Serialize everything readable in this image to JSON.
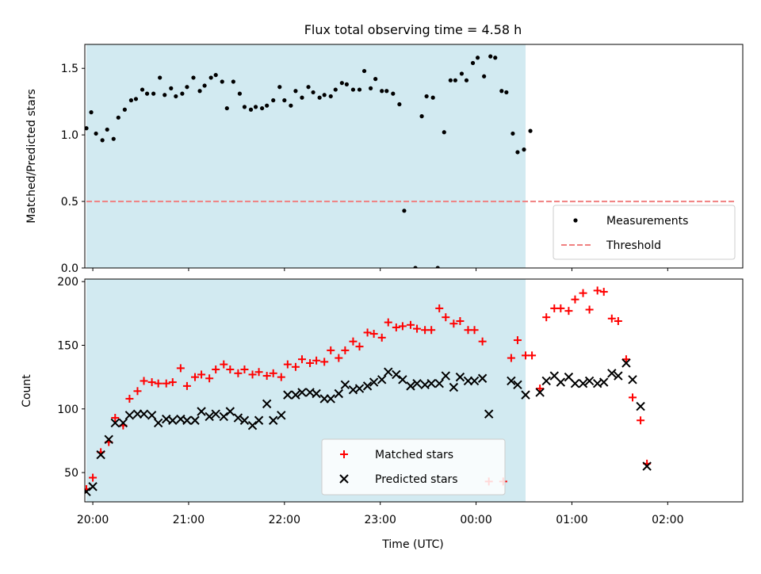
{
  "figure": {
    "title": "Flux total observing time = 4.58 h"
  },
  "chart_data": [
    {
      "type": "scatter",
      "panel": "top",
      "title": "Flux total observing time = 4.58 h",
      "xlabel": "",
      "ylabel": "Matched/Predicted stars",
      "xlim": [
        "19:55",
        "02:47"
      ],
      "ylim": [
        0,
        1.68
      ],
      "y_ticks": [
        0.0,
        0.5,
        1.0,
        1.5
      ],
      "y_tick_labels": [
        "0.0",
        "0.5",
        "1.0",
        "1.5"
      ],
      "x_ticks": [
        "20:00",
        "21:00",
        "22:00",
        "23:00",
        "00:00",
        "01:00",
        "02:00"
      ],
      "shaded_region": {
        "start": "19:56",
        "end": "00:31",
        "color": "#add8e6"
      },
      "legend": {
        "position": "lower right",
        "entries": [
          "Measurements",
          "Threshold"
        ]
      },
      "series": [
        {
          "name": "Measurements",
          "marker": "point",
          "color": "#000000",
          "points": [
            [
              "19:56",
              1.05
            ],
            [
              "19:59",
              1.17
            ],
            [
              "20:02",
              1.01
            ],
            [
              "20:06",
              0.96
            ],
            [
              "20:09",
              1.04
            ],
            [
              "20:13",
              0.97
            ],
            [
              "20:16",
              1.13
            ],
            [
              "20:20",
              1.19
            ],
            [
              "20:24",
              1.26
            ],
            [
              "20:27",
              1.27
            ],
            [
              "20:31",
              1.34
            ],
            [
              "20:34",
              1.31
            ],
            [
              "20:38",
              1.31
            ],
            [
              "20:42",
              1.43
            ],
            [
              "20:45",
              1.3
            ],
            [
              "20:49",
              1.35
            ],
            [
              "20:52",
              1.29
            ],
            [
              "20:56",
              1.31
            ],
            [
              "20:59",
              1.36
            ],
            [
              "21:03",
              1.43
            ],
            [
              "21:07",
              1.33
            ],
            [
              "21:10",
              1.37
            ],
            [
              "21:14",
              1.43
            ],
            [
              "21:17",
              1.45
            ],
            [
              "21:21",
              1.4
            ],
            [
              "21:24",
              1.2
            ],
            [
              "21:28",
              1.4
            ],
            [
              "21:32",
              1.31
            ],
            [
              "21:35",
              1.21
            ],
            [
              "21:39",
              1.19
            ],
            [
              "21:42",
              1.21
            ],
            [
              "21:46",
              1.2
            ],
            [
              "21:49",
              1.22
            ],
            [
              "21:53",
              1.26
            ],
            [
              "21:57",
              1.36
            ],
            [
              "22:00",
              1.26
            ],
            [
              "22:04",
              1.22
            ],
            [
              "22:07",
              1.33
            ],
            [
              "22:11",
              1.28
            ],
            [
              "22:15",
              1.36
            ],
            [
              "22:18",
              1.32
            ],
            [
              "22:22",
              1.28
            ],
            [
              "22:25",
              1.3
            ],
            [
              "22:29",
              1.29
            ],
            [
              "22:32",
              1.34
            ],
            [
              "22:36",
              1.39
            ],
            [
              "22:39",
              1.38
            ],
            [
              "22:43",
              1.34
            ],
            [
              "22:47",
              1.34
            ],
            [
              "22:50",
              1.48
            ],
            [
              "22:54",
              1.35
            ],
            [
              "22:57",
              1.42
            ],
            [
              "23:01",
              1.33
            ],
            [
              "23:04",
              1.33
            ],
            [
              "23:08",
              1.31
            ],
            [
              "23:12",
              1.23
            ],
            [
              "23:15",
              0.43
            ],
            [
              "23:22",
              0.0
            ],
            [
              "23:26",
              1.14
            ],
            [
              "23:29",
              1.29
            ],
            [
              "23:33",
              1.28
            ],
            [
              "23:36",
              0.0
            ],
            [
              "23:40",
              1.02
            ],
            [
              "23:44",
              1.41
            ],
            [
              "23:47",
              1.41
            ],
            [
              "23:51",
              1.46
            ],
            [
              "23:54",
              1.41
            ],
            [
              "23:58",
              1.54
            ],
            [
              "00:01",
              1.58
            ],
            [
              "00:05",
              1.44
            ],
            [
              "00:09",
              1.59
            ],
            [
              "00:12",
              1.58
            ],
            [
              "00:16",
              1.33
            ],
            [
              "00:19",
              1.32
            ],
            [
              "00:23",
              1.01
            ],
            [
              "00:26",
              0.87
            ],
            [
              "00:30",
              0.89
            ],
            [
              "00:34",
              1.03
            ]
          ]
        },
        {
          "name": "Threshold",
          "style": "dashed",
          "color": "#f08080",
          "points": [
            [
              "19:56",
              0.5
            ],
            [
              "02:42",
              0.5
            ]
          ]
        }
      ]
    },
    {
      "type": "scatter",
      "panel": "bottom",
      "xlabel": "Time (UTC)",
      "ylabel": "Count",
      "xlim": [
        "19:55",
        "02:47"
      ],
      "ylim": [
        27,
        202
      ],
      "y_ticks": [
        50,
        100,
        150,
        200
      ],
      "y_tick_labels": [
        "50",
        "100",
        "150",
        "200"
      ],
      "x_ticks": [
        "20:00",
        "21:00",
        "22:00",
        "23:00",
        "00:00",
        "01:00",
        "02:00"
      ],
      "x_tick_labels": [
        "20:00",
        "21:00",
        "22:00",
        "23:00",
        "00:00",
        "01:00",
        "02:00"
      ],
      "shaded_region": {
        "start": "19:56",
        "end": "00:31",
        "color": "#add8e6"
      },
      "legend": {
        "position": "lower center",
        "entries": [
          "Matched stars",
          "Predicted stars"
        ]
      },
      "series": [
        {
          "name": "Matched stars",
          "marker": "plus",
          "color": "#ff0000",
          "points": [
            [
              "19:56",
              37
            ],
            [
              "20:00",
              46
            ],
            [
              "20:05",
              66
            ],
            [
              "20:10",
              74
            ],
            [
              "20:14",
              93
            ],
            [
              "20:19",
              87
            ],
            [
              "20:23",
              108
            ],
            [
              "20:28",
              114
            ],
            [
              "20:32",
              122
            ],
            [
              "20:37",
              121
            ],
            [
              "20:41",
              120
            ],
            [
              "20:46",
              120
            ],
            [
              "20:50",
              121
            ],
            [
              "20:55",
              132
            ],
            [
              "20:59",
              118
            ],
            [
              "21:04",
              125
            ],
            [
              "21:08",
              127
            ],
            [
              "21:13",
              124
            ],
            [
              "21:17",
              131
            ],
            [
              "21:22",
              135
            ],
            [
              "21:26",
              131
            ],
            [
              "21:31",
              128
            ],
            [
              "21:35",
              131
            ],
            [
              "21:40",
              127
            ],
            [
              "21:44",
              129
            ],
            [
              "21:49",
              126
            ],
            [
              "21:53",
              128
            ],
            [
              "21:58",
              125
            ],
            [
              "22:02",
              135
            ],
            [
              "22:07",
              133
            ],
            [
              "22:11",
              139
            ],
            [
              "22:16",
              136
            ],
            [
              "22:20",
              138
            ],
            [
              "22:25",
              137
            ],
            [
              "22:29",
              146
            ],
            [
              "22:34",
              140
            ],
            [
              "22:38",
              146
            ],
            [
              "22:43",
              153
            ],
            [
              "22:47",
              149
            ],
            [
              "22:52",
              160
            ],
            [
              "22:56",
              159
            ],
            [
              "23:01",
              156
            ],
            [
              "23:05",
              168
            ],
            [
              "23:10",
              164
            ],
            [
              "23:14",
              165
            ],
            [
              "23:19",
              166
            ],
            [
              "23:23",
              163
            ],
            [
              "23:28",
              162
            ],
            [
              "23:32",
              162
            ],
            [
              "23:37",
              179
            ],
            [
              "23:41",
              172
            ],
            [
              "23:46",
              167
            ],
            [
              "23:50",
              169
            ],
            [
              "23:55",
              162
            ],
            [
              "23:59",
              162
            ],
            [
              "00:04",
              153
            ],
            [
              "00:08",
              43
            ],
            [
              "00:17",
              43
            ],
            [
              "00:22",
              140
            ],
            [
              "00:26",
              154
            ],
            [
              "00:31",
              142
            ],
            [
              "00:35",
              142
            ],
            [
              "00:40",
              116
            ],
            [
              "00:44",
              172
            ],
            [
              "00:49",
              179
            ],
            [
              "00:53",
              179
            ],
            [
              "00:58",
              177
            ],
            [
              "01:02",
              186
            ],
            [
              "01:07",
              191
            ],
            [
              "01:11",
              178
            ],
            [
              "01:16",
              193
            ],
            [
              "01:20",
              192
            ],
            [
              "01:25",
              171
            ],
            [
              "01:29",
              169
            ],
            [
              "01:34",
              139
            ],
            [
              "01:38",
              109
            ],
            [
              "01:43",
              91
            ],
            [
              "01:47",
              57
            ]
          ]
        },
        {
          "name": "Predicted stars",
          "marker": "x",
          "color": "#000000",
          "points": [
            [
              "19:56",
              35
            ],
            [
              "20:00",
              39
            ],
            [
              "20:05",
              64
            ],
            [
              "20:10",
              76
            ],
            [
              "20:14",
              89
            ],
            [
              "20:19",
              89
            ],
            [
              "20:23",
              95
            ],
            [
              "20:28",
              96
            ],
            [
              "20:32",
              96
            ],
            [
              "20:37",
              95
            ],
            [
              "20:41",
              89
            ],
            [
              "20:46",
              92
            ],
            [
              "20:50",
              91
            ],
            [
              "20:55",
              92
            ],
            [
              "20:59",
              91
            ],
            [
              "21:04",
              91
            ],
            [
              "21:08",
              98
            ],
            [
              "21:13",
              94
            ],
            [
              "21:17",
              96
            ],
            [
              "21:22",
              94
            ],
            [
              "21:26",
              98
            ],
            [
              "21:31",
              93
            ],
            [
              "21:35",
              91
            ],
            [
              "21:40",
              87
            ],
            [
              "21:44",
              91
            ],
            [
              "21:49",
              104
            ],
            [
              "21:53",
              91
            ],
            [
              "21:58",
              95
            ],
            [
              "22:02",
              111
            ],
            [
              "22:07",
              111
            ],
            [
              "22:11",
              113
            ],
            [
              "22:16",
              113
            ],
            [
              "22:20",
              112
            ],
            [
              "22:25",
              108
            ],
            [
              "22:29",
              108
            ],
            [
              "22:34",
              112
            ],
            [
              "22:38",
              119
            ],
            [
              "22:43",
              115
            ],
            [
              "22:47",
              116
            ],
            [
              "22:52",
              118
            ],
            [
              "22:56",
              121
            ],
            [
              "23:01",
              123
            ],
            [
              "23:05",
              129
            ],
            [
              "23:10",
              127
            ],
            [
              "23:14",
              123
            ],
            [
              "23:19",
              118
            ],
            [
              "23:23",
              120
            ],
            [
              "23:28",
              119
            ],
            [
              "23:32",
              120
            ],
            [
              "23:37",
              120
            ],
            [
              "23:41",
              126
            ],
            [
              "23:46",
              117
            ],
            [
              "23:50",
              125
            ],
            [
              "23:55",
              122
            ],
            [
              "23:59",
              122
            ],
            [
              "00:04",
              124
            ],
            [
              "00:08",
              96
            ],
            [
              "00:22",
              122
            ],
            [
              "00:26",
              119
            ],
            [
              "00:31",
              111
            ],
            [
              "00:40",
              113
            ],
            [
              "00:44",
              122
            ],
            [
              "00:49",
              126
            ],
            [
              "00:53",
              121
            ],
            [
              "00:58",
              125
            ],
            [
              "01:02",
              120
            ],
            [
              "01:07",
              120
            ],
            [
              "01:11",
              122
            ],
            [
              "01:16",
              120
            ],
            [
              "01:20",
              121
            ],
            [
              "01:25",
              128
            ],
            [
              "01:29",
              126
            ],
            [
              "01:34",
              136
            ],
            [
              "01:38",
              123
            ],
            [
              "01:43",
              102
            ],
            [
              "01:47",
              55
            ]
          ]
        }
      ]
    }
  ]
}
